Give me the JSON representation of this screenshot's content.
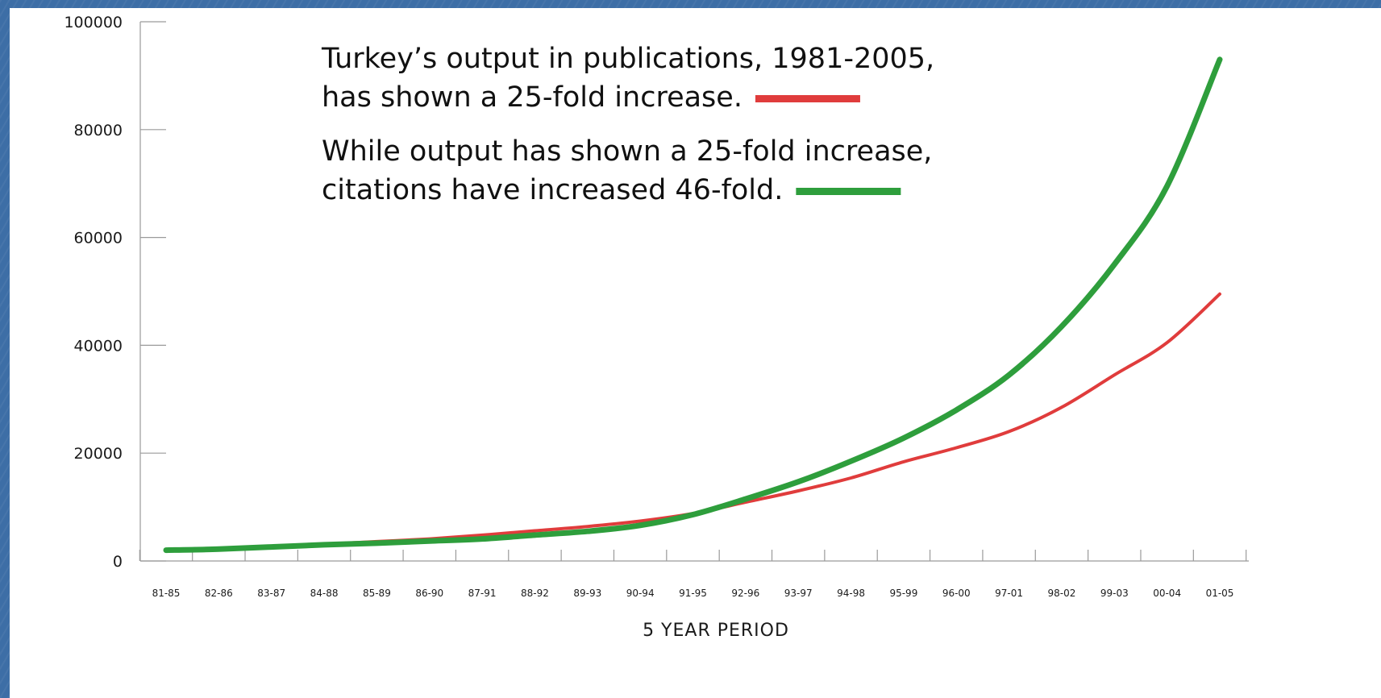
{
  "chart_data": {
    "type": "line",
    "title": "",
    "xlabel": "5 YEAR PERIOD",
    "ylabel": "",
    "ylim": [
      0,
      100000
    ],
    "yticks": [
      0,
      20000,
      40000,
      60000,
      80000,
      100000
    ],
    "yticks_text": [
      "0",
      "20000",
      "40000",
      "60000",
      "80000",
      "100000"
    ],
    "grid": false,
    "categories": [
      "81-85",
      "82-86",
      "83-87",
      "84-88",
      "85-89",
      "86-90",
      "87-91",
      "88-92",
      "89-93",
      "90-94",
      "91-95",
      "92-96",
      "93-97",
      "94-98",
      "95-99",
      "96-00",
      "97-01",
      "98-02",
      "99-03",
      "00-04",
      "01-05"
    ],
    "series": [
      {
        "color": "#e03c3c",
        "values": [
          2000,
          2300,
          2700,
          3100,
          3600,
          4100,
          4800,
          5600,
          6400,
          7400,
          8800,
          10900,
          13000,
          15400,
          18400,
          21000,
          24000,
          28500,
          34500,
          40500,
          49500
        ]
      },
      {
        "color": "#2e9e3c",
        "values": [
          2000,
          2200,
          2600,
          3000,
          3300,
          3700,
          4100,
          4800,
          5500,
          6600,
          8600,
          11500,
          14700,
          18500,
          22800,
          28000,
          34500,
          43500,
          55000,
          69500,
          93000
        ]
      }
    ],
    "annotations": [
      {
        "lines": [
          "Turkey’s output in publications, 1981-2005,",
          "has shown a 25-fold increase."
        ],
        "legend_color": "#e03c3c"
      },
      {
        "lines": [
          "While output has shown a 25-fold increase,",
          "citations have increased 46-fold."
        ],
        "legend_color": "#2e9e3c"
      }
    ]
  }
}
